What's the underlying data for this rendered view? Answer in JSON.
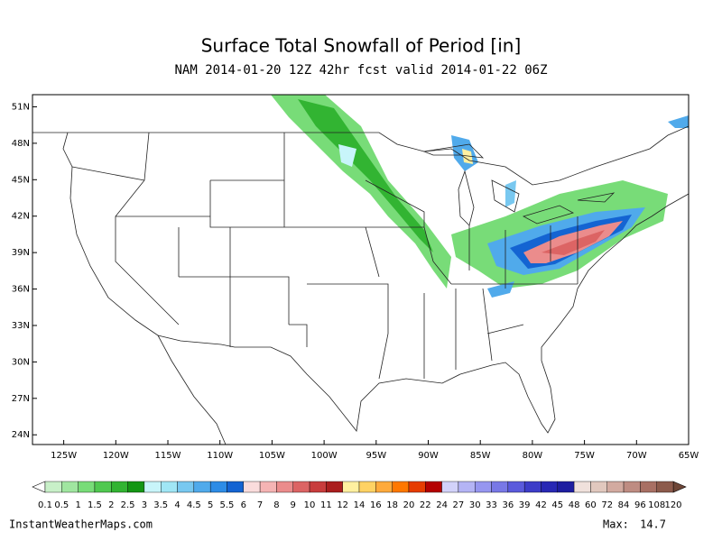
{
  "header": {
    "title": "Surface Total Snowfall of Period [in]",
    "subtitle": "NAM 2014-01-20 12Z 42hr fcst valid 2014-01-22 06Z"
  },
  "map": {
    "xlim": [
      -128,
      -65
    ],
    "ylim": [
      23.2,
      52
    ],
    "yticks": [
      {
        "value": 51,
        "label": "51N"
      },
      {
        "value": 48,
        "label": "48N"
      },
      {
        "value": 45,
        "label": "45N"
      },
      {
        "value": 42,
        "label": "42N"
      },
      {
        "value": 39,
        "label": "39N"
      },
      {
        "value": 36,
        "label": "36N"
      },
      {
        "value": 33,
        "label": "33N"
      },
      {
        "value": 30,
        "label": "30N"
      },
      {
        "value": 27,
        "label": "27N"
      },
      {
        "value": 24,
        "label": "24N"
      }
    ],
    "xticks": [
      {
        "value": -125,
        "label": "125W"
      },
      {
        "value": -120,
        "label": "120W"
      },
      {
        "value": -115,
        "label": "115W"
      },
      {
        "value": -110,
        "label": "110W"
      },
      {
        "value": -105,
        "label": "105W"
      },
      {
        "value": -100,
        "label": "100W"
      },
      {
        "value": -95,
        "label": "95W"
      },
      {
        "value": -90,
        "label": "90W"
      },
      {
        "value": -85,
        "label": "85W"
      },
      {
        "value": -80,
        "label": "80W"
      },
      {
        "value": -75,
        "label": "75W"
      },
      {
        "value": -70,
        "label": "70W"
      },
      {
        "value": -65,
        "label": "65W"
      }
    ]
  },
  "colorbar": {
    "levels": [
      0.1,
      0.5,
      1,
      1.5,
      2,
      2.5,
      3,
      3.5,
      4,
      4.5,
      5,
      5.5,
      6,
      7,
      8,
      9,
      10,
      11,
      12,
      14,
      16,
      18,
      20,
      22,
      24,
      27,
      30,
      33,
      36,
      39,
      42,
      45,
      48,
      60,
      72,
      84,
      96,
      108,
      120
    ],
    "colors": [
      "#c8f0c8",
      "#a0e6a0",
      "#78dc78",
      "#50c850",
      "#32b432",
      "#149614",
      "#c8f5fa",
      "#a0e6f5",
      "#78c8f0",
      "#50aaeb",
      "#2d8ce6",
      "#1464d2",
      "#fadcdc",
      "#f5b4b4",
      "#eb8c8c",
      "#dc6464",
      "#c83c3c",
      "#aa1e1e",
      "#fff0a0",
      "#ffd264",
      "#ffaa3c",
      "#ff7800",
      "#e63c00",
      "#b40000",
      "#d2d2fa",
      "#b4b4f5",
      "#9696f0",
      "#7878e6",
      "#5a5adc",
      "#3c3cc8",
      "#2828b4",
      "#1e1ea0",
      "#f0e1dc",
      "#e1c8be",
      "#d2aaa0",
      "#be8c82",
      "#a87064",
      "#8c5a4b"
    ],
    "under_color": "#ffffff",
    "over_color": "#6e4637"
  },
  "footer": {
    "site": "InstantWeatherMaps.com",
    "max_label": "Max:",
    "max_value": 14.7
  }
}
